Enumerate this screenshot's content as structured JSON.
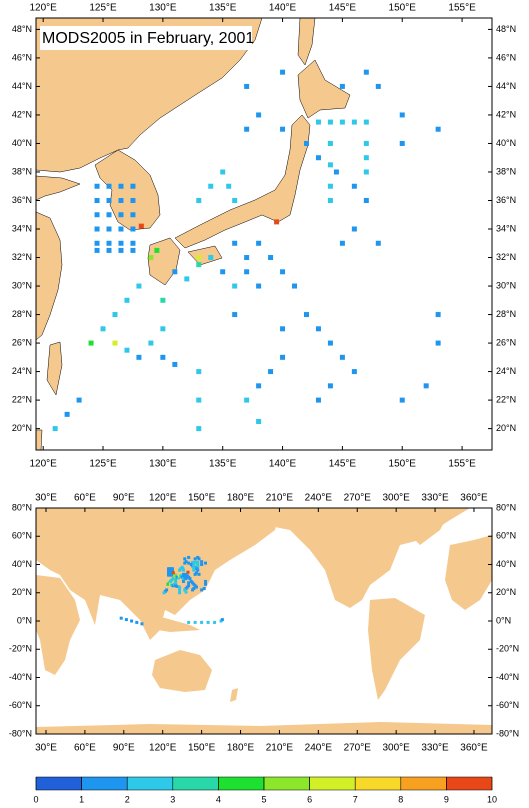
{
  "top_map": {
    "title": "MODS2005 in February, 2001",
    "xlim": [
      119.4,
      157.5
    ],
    "ylim": [
      18.5,
      48.8
    ],
    "xticks": [
      {
        "value": 120,
        "label": "120°E"
      },
      {
        "value": 125,
        "label": "125°E"
      },
      {
        "value": 130,
        "label": "130°E"
      },
      {
        "value": 135,
        "label": "135°E"
      },
      {
        "value": 140,
        "label": "140°E"
      },
      {
        "value": 145,
        "label": "145°E"
      },
      {
        "value": 150,
        "label": "150°E"
      },
      {
        "value": 155,
        "label": "155°E"
      }
    ],
    "yticks": [
      {
        "value": 20,
        "label": "20°N"
      },
      {
        "value": 22,
        "label": "22°N"
      },
      {
        "value": 24,
        "label": "24°N"
      },
      {
        "value": 26,
        "label": "26°N"
      },
      {
        "value": 28,
        "label": "28°N"
      },
      {
        "value": 30,
        "label": "30°N"
      },
      {
        "value": 32,
        "label": "32°N"
      },
      {
        "value": 34,
        "label": "34°N"
      },
      {
        "value": 36,
        "label": "36°N"
      },
      {
        "value": 38,
        "label": "38°N"
      },
      {
        "value": 40,
        "label": "40°N"
      },
      {
        "value": 42,
        "label": "42°N"
      },
      {
        "value": 44,
        "label": "44°N"
      },
      {
        "value": 46,
        "label": "46°N"
      },
      {
        "value": 48,
        "label": "48°N"
      }
    ],
    "points": [
      [
        124.5,
        37,
        1
      ],
      [
        125.5,
        37,
        1
      ],
      [
        126.5,
        37,
        1
      ],
      [
        127.5,
        37,
        1
      ],
      [
        124.5,
        36,
        1
      ],
      [
        125.5,
        36,
        1
      ],
      [
        126.5,
        36,
        1
      ],
      [
        127.5,
        36,
        1
      ],
      [
        124.5,
        35,
        1
      ],
      [
        125.5,
        35,
        1
      ],
      [
        126.5,
        35,
        1
      ],
      [
        127.5,
        35,
        1
      ],
      [
        124.5,
        34,
        1
      ],
      [
        125.5,
        34,
        1
      ],
      [
        126.5,
        34,
        1
      ],
      [
        127.5,
        34,
        1
      ],
      [
        124.5,
        33,
        1
      ],
      [
        125.5,
        33,
        1
      ],
      [
        126.5,
        33,
        1
      ],
      [
        127.5,
        33,
        1
      ],
      [
        124.5,
        32.5,
        1
      ],
      [
        125.5,
        32.5,
        1
      ],
      [
        126.5,
        32.5,
        1
      ],
      [
        127.5,
        32.5,
        1
      ],
      [
        128,
        30,
        2
      ],
      [
        127,
        29,
        2
      ],
      [
        126,
        28,
        2
      ],
      [
        125,
        27,
        2
      ],
      [
        124,
        26,
        4
      ],
      [
        126,
        26,
        6
      ],
      [
        127,
        25.5,
        2
      ],
      [
        128,
        25,
        1
      ],
      [
        129,
        26,
        2
      ],
      [
        130,
        25,
        1
      ],
      [
        131,
        24.5,
        1
      ],
      [
        130,
        27,
        2
      ],
      [
        130,
        29,
        3
      ],
      [
        129.5,
        32.5,
        4
      ],
      [
        129,
        32,
        5
      ],
      [
        128.2,
        34.2,
        9
      ],
      [
        139.5,
        34.5,
        9
      ],
      [
        131,
        31,
        1
      ],
      [
        132,
        30.5,
        2
      ],
      [
        133,
        31.5,
        3
      ],
      [
        133,
        32,
        6
      ],
      [
        134,
        32,
        2
      ],
      [
        135,
        31,
        1
      ],
      [
        136,
        30,
        2
      ],
      [
        137,
        31,
        1
      ],
      [
        135,
        38,
        2
      ],
      [
        135.5,
        37,
        2
      ],
      [
        136,
        36,
        2
      ],
      [
        134,
        37,
        2
      ],
      [
        133,
        36,
        2
      ],
      [
        143,
        41.5,
        2
      ],
      [
        144,
        41.5,
        2
      ],
      [
        145,
        41.5,
        2
      ],
      [
        146,
        41.5,
        2
      ],
      [
        147,
        41.5,
        2
      ],
      [
        147,
        40,
        2
      ],
      [
        147,
        39,
        2
      ],
      [
        147,
        38,
        2
      ],
      [
        142,
        40,
        1
      ],
      [
        143,
        39,
        1
      ],
      [
        144.5,
        38,
        1
      ],
      [
        146,
        37,
        1
      ],
      [
        144,
        40,
        2
      ],
      [
        144,
        38.5,
        2
      ],
      [
        144,
        37,
        2
      ],
      [
        144,
        36,
        2
      ],
      [
        150,
        42,
        1
      ],
      [
        153,
        41,
        1
      ],
      [
        150,
        40,
        1
      ],
      [
        147,
        36,
        1
      ],
      [
        145,
        33,
        1
      ],
      [
        146,
        34,
        1
      ],
      [
        148,
        33,
        1
      ],
      [
        141,
        30,
        1
      ],
      [
        142,
        28,
        1
      ],
      [
        143,
        27,
        1
      ],
      [
        144,
        26,
        1
      ],
      [
        145,
        25,
        1
      ],
      [
        146,
        24,
        1
      ],
      [
        144,
        23,
        1
      ],
      [
        143,
        22,
        1
      ],
      [
        153,
        28,
        1
      ],
      [
        153,
        26,
        1
      ],
      [
        152,
        23,
        1
      ],
      [
        150,
        22,
        1
      ],
      [
        140,
        27,
        1
      ],
      [
        140,
        25,
        1
      ],
      [
        139,
        24,
        1
      ],
      [
        138,
        23,
        1
      ],
      [
        133,
        24,
        2
      ],
      [
        133,
        22,
        2
      ],
      [
        133,
        20,
        2
      ],
      [
        137,
        22,
        2
      ],
      [
        138,
        20.5,
        2
      ],
      [
        123,
        22,
        1
      ],
      [
        122,
        21,
        1
      ],
      [
        121,
        20,
        2
      ],
      [
        145,
        44,
        1
      ],
      [
        147,
        45,
        1
      ],
      [
        148,
        44,
        1
      ],
      [
        140,
        45,
        1
      ],
      [
        137,
        44,
        1
      ],
      [
        138,
        42,
        1
      ],
      [
        137,
        41,
        1
      ],
      [
        140,
        41,
        1
      ],
      [
        136,
        33,
        1
      ],
      [
        138,
        33,
        1
      ],
      [
        137,
        32,
        1
      ],
      [
        139,
        32,
        1
      ],
      [
        140,
        31,
        1
      ],
      [
        138,
        30,
        1
      ],
      [
        136,
        28,
        1
      ]
    ]
  },
  "bottom_map": {
    "xlim": [
      22.3,
      373.9
    ],
    "ylim": [
      -80,
      80
    ],
    "xticks": [
      {
        "value": 30,
        "label": "30°E"
      },
      {
        "value": 60,
        "label": "60°E"
      },
      {
        "value": 90,
        "label": "90°E"
      },
      {
        "value": 120,
        "label": "120°E"
      },
      {
        "value": 150,
        "label": "150°E"
      },
      {
        "value": 180,
        "label": "180°E"
      },
      {
        "value": 210,
        "label": "210°E"
      },
      {
        "value": 240,
        "label": "240°E"
      },
      {
        "value": 270,
        "label": "270°E"
      },
      {
        "value": 300,
        "label": "300°E"
      },
      {
        "value": 330,
        "label": "330°E"
      },
      {
        "value": 360,
        "label": "360°E"
      }
    ],
    "yticks": [
      {
        "value": -80,
        "label": "-80°N"
      },
      {
        "value": -60,
        "label": "-60°N"
      },
      {
        "value": -40,
        "label": "-40°N"
      },
      {
        "value": -20,
        "label": "-20°N"
      },
      {
        "value": 0,
        "label": "0°N"
      },
      {
        "value": 20,
        "label": "20°N"
      },
      {
        "value": 40,
        "label": "40°N"
      },
      {
        "value": 60,
        "label": "60°N"
      },
      {
        "value": 80,
        "label": "80°N"
      }
    ],
    "points": [
      [
        88,
        2,
        1
      ],
      [
        92,
        1,
        1
      ],
      [
        96,
        0,
        1
      ],
      [
        100,
        -1,
        1
      ],
      [
        104,
        -2,
        1
      ],
      [
        140,
        -1,
        2
      ],
      [
        145,
        -1,
        2
      ],
      [
        150,
        -1,
        2
      ],
      [
        155,
        -1,
        2
      ],
      [
        160,
        -1,
        2
      ],
      [
        165,
        0,
        2
      ],
      [
        166,
        1,
        1
      ]
    ]
  },
  "colorbar": {
    "ticks": [
      0,
      1,
      2,
      3,
      4,
      5,
      6,
      7,
      8,
      9,
      10
    ],
    "colors": [
      "#2060d8",
      "#1e96f0",
      "#2ec8e8",
      "#28d8a8",
      "#1ee030",
      "#8ce62c",
      "#d2ef28",
      "#f8d828",
      "#f8a020",
      "#e84818"
    ]
  }
}
